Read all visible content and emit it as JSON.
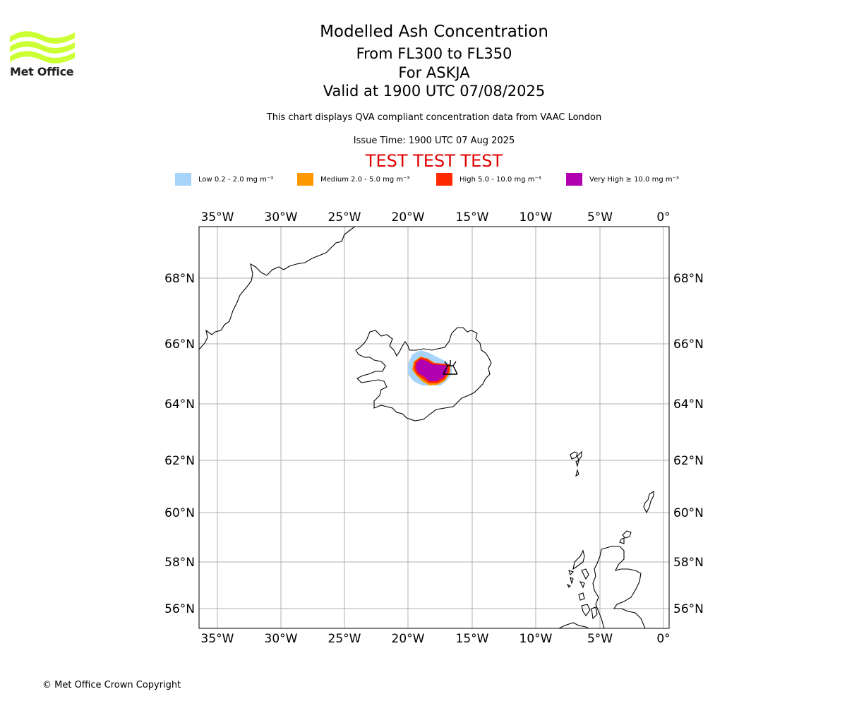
{
  "header": {
    "logo_text": "Met Office",
    "title": "Modelled Ash Concentration",
    "subtitle_levels": "From FL300 to FL350",
    "subtitle_volcano": "For ASKJA",
    "subtitle_valid": "Valid at 1900 UTC 07/08/2025",
    "description": "This chart displays QVA compliant concentration data from VAAC London",
    "issue_time": "Issue Time: 1900 UTC 07 Aug 2025",
    "test_banner": "TEST TEST TEST"
  },
  "legend": [
    {
      "label": "Low 0.2 - 2.0 mg m⁻³",
      "color": "#a6d4fa"
    },
    {
      "label": "Medium 2.0 - 5.0 mg m⁻³",
      "color": "#ff9900"
    },
    {
      "label": "High 5.0 - 10.0 mg m⁻³",
      "color": "#ff2a00"
    },
    {
      "label": "Very High ≥ 10.0 mg m⁻³",
      "color": "#b000b0"
    }
  ],
  "map": {
    "lon_ticks": [
      "35°W",
      "30°W",
      "25°W",
      "20°W",
      "15°W",
      "10°W",
      "5°W",
      "0°"
    ],
    "lat_ticks": [
      "68°N",
      "66°N",
      "64°N",
      "62°N",
      "60°N",
      "58°N",
      "56°N"
    ],
    "volcano_symbol": "volcano-icon"
  },
  "footer": {
    "copyright": "© Met Office Crown Copyright"
  }
}
